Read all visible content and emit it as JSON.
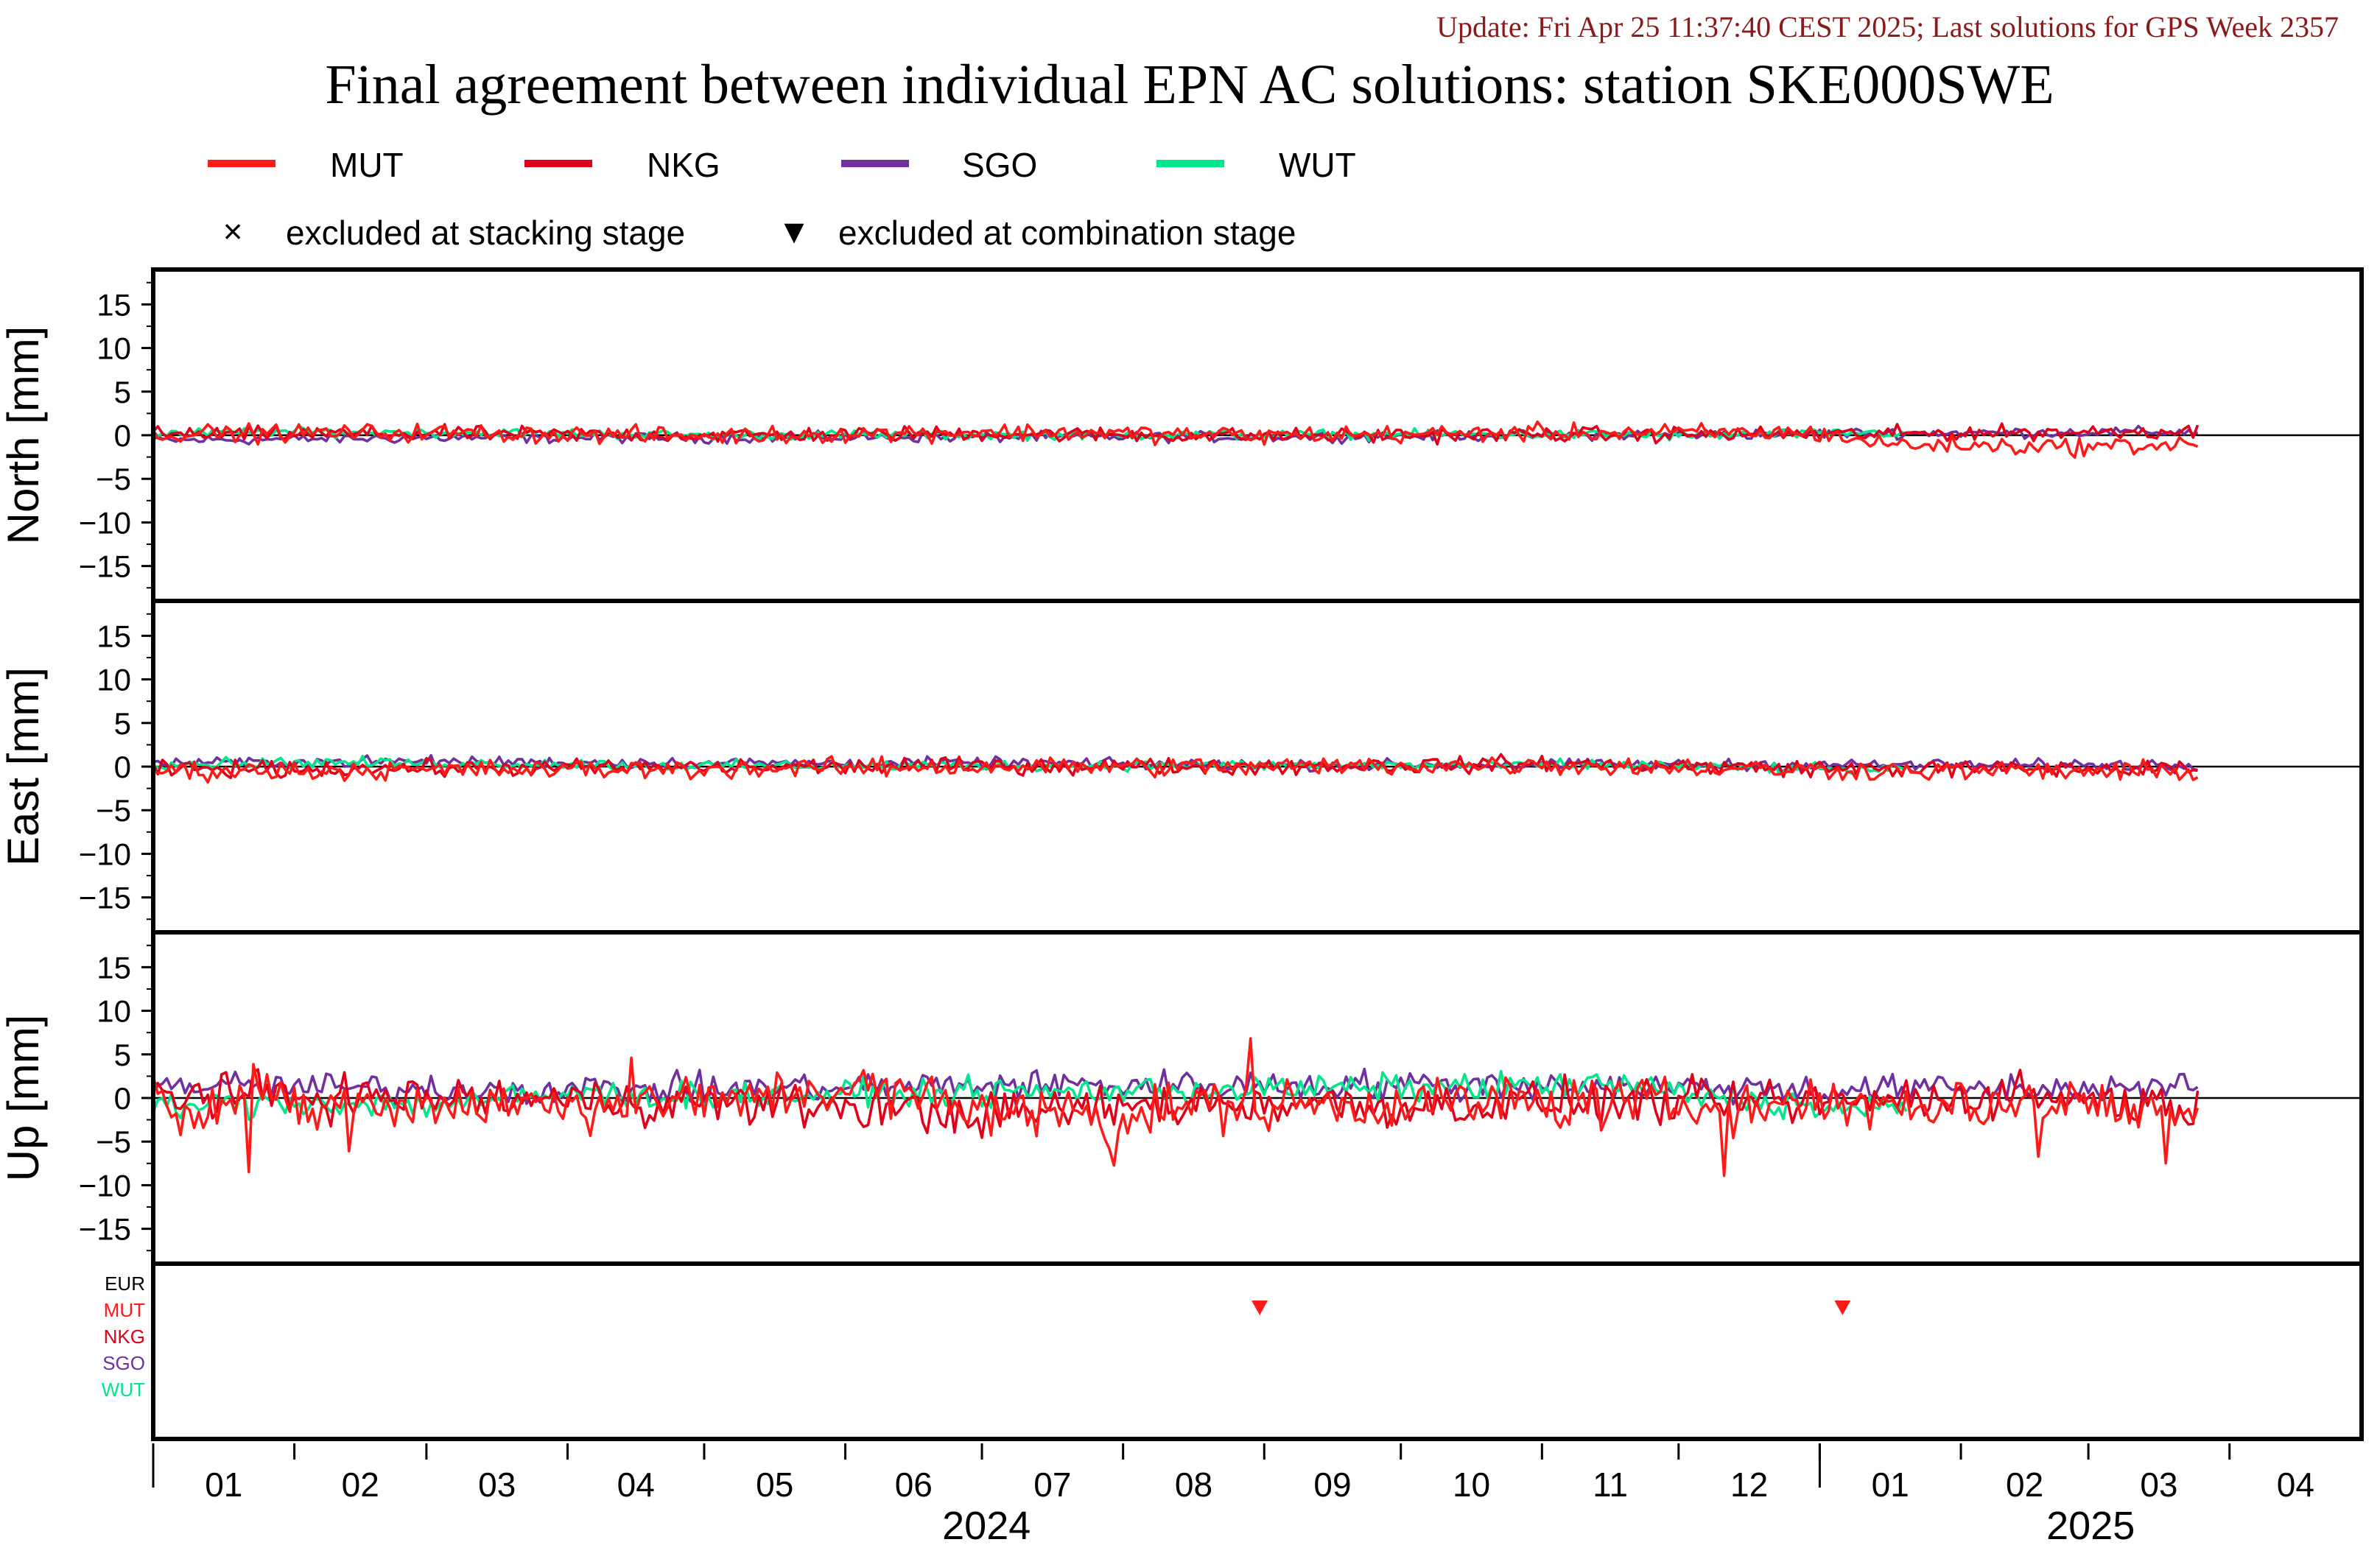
{
  "header": {
    "update": "Update: Fri Apr 25 11:37:40 CEST 2025; Last solutions for GPS Week 2357",
    "title": "Final agreement between individual EPN AC solutions: station SKE000SWE"
  },
  "legend": {
    "series": [
      {
        "name": "MUT",
        "color": "#ff1a1a"
      },
      {
        "name": "NKG",
        "color": "#e0001a"
      },
      {
        "name": "SGO",
        "color": "#7030a0"
      },
      {
        "name": "WUT",
        "color": "#00e68a"
      }
    ],
    "markers": [
      {
        "symbol": "×",
        "label": "excluded at stacking stage"
      },
      {
        "symbol": "▼",
        "label": "excluded at combination stage"
      }
    ]
  },
  "chart_data": {
    "type": "line",
    "x_unit": "date",
    "x_range": [
      "2024-01-01",
      "2025-04-30"
    ],
    "y_unit": "mm",
    "ylim": [
      -19,
      19
    ],
    "yticks": [
      15,
      10,
      5,
      0,
      -5,
      -10,
      -15
    ],
    "grid": false,
    "legend_placement": "top",
    "panels": [
      {
        "ylabel": "North [mm]",
        "series": [
          {
            "name": "MUT",
            "x": [
              "2024-01-01",
              "2024-03-01",
              "2024-05-01",
              "2024-07-01",
              "2024-09-01",
              "2024-11-01",
              "2024-12-31",
              "2025-01-15",
              "2025-02-01",
              "2025-03-01",
              "2025-03-25"
            ],
            "y": [
              0.2,
              0.3,
              -0.1,
              0.4,
              0.0,
              0.3,
              0.3,
              -1.0,
              -1.2,
              -1.3,
              -1.0
            ]
          },
          {
            "name": "NKG",
            "x": [
              "2024-01-01",
              "2024-03-01",
              "2024-05-01",
              "2024-07-01",
              "2024-09-01",
              "2024-11-01",
              "2025-01-01",
              "2025-03-25"
            ],
            "y": [
              0.1,
              0.2,
              0.0,
              0.2,
              -0.1,
              0.1,
              0.1,
              0.5
            ]
          },
          {
            "name": "SGO",
            "x": [
              "2024-01-01",
              "2024-03-01",
              "2024-05-01",
              "2024-07-01",
              "2024-09-01",
              "2024-11-01",
              "2025-01-01",
              "2025-03-25"
            ],
            "y": [
              -0.6,
              -0.3,
              -0.3,
              -0.2,
              -0.2,
              0.0,
              0.2,
              0.4
            ]
          },
          {
            "name": "WUT",
            "x": [
              "2024-01-01",
              "2024-02-01",
              "2024-03-01",
              "2024-04-01",
              "2024-05-01",
              "2024-11-20",
              "2024-12-01",
              "2025-01-10",
              "2025-01-20"
            ],
            "y": [
              0.2,
              0.4,
              0.3,
              0.2,
              0.0,
              0.1,
              -0.1,
              0.3,
              0.2
            ]
          }
        ]
      },
      {
        "ylabel": "East [mm]",
        "series": [
          {
            "name": "MUT",
            "x": [
              "2024-01-01",
              "2024-03-01",
              "2024-05-01",
              "2024-07-01",
              "2024-09-01",
              "2024-11-01",
              "2025-01-01",
              "2025-03-25"
            ],
            "y": [
              -0.5,
              -0.4,
              -0.3,
              0.0,
              0.0,
              0.2,
              -0.4,
              -0.6
            ]
          },
          {
            "name": "NKG",
            "x": [
              "2024-01-01",
              "2024-03-01",
              "2024-05-01",
              "2024-07-01",
              "2024-09-01",
              "2024-11-01",
              "2025-01-01",
              "2025-03-25"
            ],
            "y": [
              -0.3,
              -0.2,
              -0.1,
              0.1,
              0.0,
              0.3,
              -0.2,
              -0.3
            ]
          },
          {
            "name": "SGO",
            "x": [
              "2024-01-01",
              "2024-03-01",
              "2024-05-01",
              "2024-07-01",
              "2024-09-01",
              "2024-11-01",
              "2025-01-01",
              "2025-03-25"
            ],
            "y": [
              0.4,
              0.6,
              0.4,
              0.4,
              0.2,
              0.2,
              0.2,
              0.2
            ]
          },
          {
            "name": "WUT",
            "x": [
              "2024-01-01",
              "2024-02-01",
              "2024-03-01",
              "2024-04-01",
              "2024-05-01",
              "2024-11-20",
              "2024-12-01",
              "2025-01-10",
              "2025-01-20"
            ],
            "y": [
              0.3,
              0.5,
              0.4,
              0.3,
              0.1,
              0.2,
              0.1,
              -0.4,
              -0.3
            ]
          }
        ]
      },
      {
        "ylabel": "Up [mm]",
        "series": [
          {
            "name": "MUT",
            "x": [
              "2024-01-01",
              "2024-03-01",
              "2024-05-01",
              "2024-06-01",
              "2024-07-01",
              "2024-08-01",
              "2024-09-01",
              "2024-10-01",
              "2024-11-01",
              "2025-01-01",
              "2025-02-15",
              "2025-03-25"
            ],
            "y": [
              -0.5,
              -0.8,
              -0.5,
              1.5,
              -1.5,
              -1.5,
              -0.5,
              -0.5,
              -0.5,
              -1.0,
              -0.5,
              -1.5
            ]
          },
          {
            "name": "NKG",
            "x": [
              "2024-01-01",
              "2024-03-01",
              "2024-05-01",
              "2024-06-01",
              "2024-07-01",
              "2024-08-01",
              "2024-09-01",
              "2024-10-01",
              "2024-11-01",
              "2025-01-01",
              "2025-02-15",
              "2025-03-25"
            ],
            "y": [
              0.5,
              0.0,
              -0.5,
              -1.0,
              -2.0,
              -1.0,
              -0.5,
              -1.0,
              -0.5,
              -0.5,
              0.5,
              -1.0
            ]
          },
          {
            "name": "SGO",
            "x": [
              "2024-01-01",
              "2024-03-01",
              "2024-05-01",
              "2024-07-01",
              "2024-09-01",
              "2024-11-01",
              "2025-01-01",
              "2025-03-25"
            ],
            "y": [
              1.5,
              1.0,
              1.0,
              1.5,
              1.5,
              1.5,
              1.0,
              1.2
            ]
          },
          {
            "name": "WUT",
            "x": [
              "2024-01-01",
              "2024-02-01",
              "2024-03-01",
              "2024-04-01",
              "2024-05-01",
              "2024-11-20",
              "2024-12-01",
              "2025-01-10",
              "2025-01-20"
            ],
            "y": [
              -1.0,
              -0.5,
              -0.8,
              0.5,
              0.2,
              1.5,
              0.5,
              -1.5,
              -1.0
            ]
          }
        ]
      }
    ],
    "exclusions": {
      "row_labels": [
        "EUR",
        "MUT",
        "NKG",
        "SGO",
        "WUT"
      ],
      "row_colors": [
        "#000000",
        "#ff1a1a",
        "#e0001a",
        "#7030a0",
        "#00e68a"
      ],
      "combination_stage": [
        {
          "row": "MUT",
          "date": "2024-08-31"
        },
        {
          "row": "MUT",
          "date": "2025-01-06"
        }
      ]
    },
    "x_axis": {
      "month_labels": [
        "01",
        "02",
        "03",
        "04",
        "05",
        "06",
        "07",
        "08",
        "09",
        "10",
        "11",
        "12",
        "01",
        "02",
        "03",
        "04"
      ],
      "years": [
        {
          "label": "2024",
          "start": "2024-01-01",
          "end": "2025-01-01"
        },
        {
          "label": "2025",
          "start": "2025-01-01",
          "end": "2025-04-30"
        }
      ]
    }
  }
}
